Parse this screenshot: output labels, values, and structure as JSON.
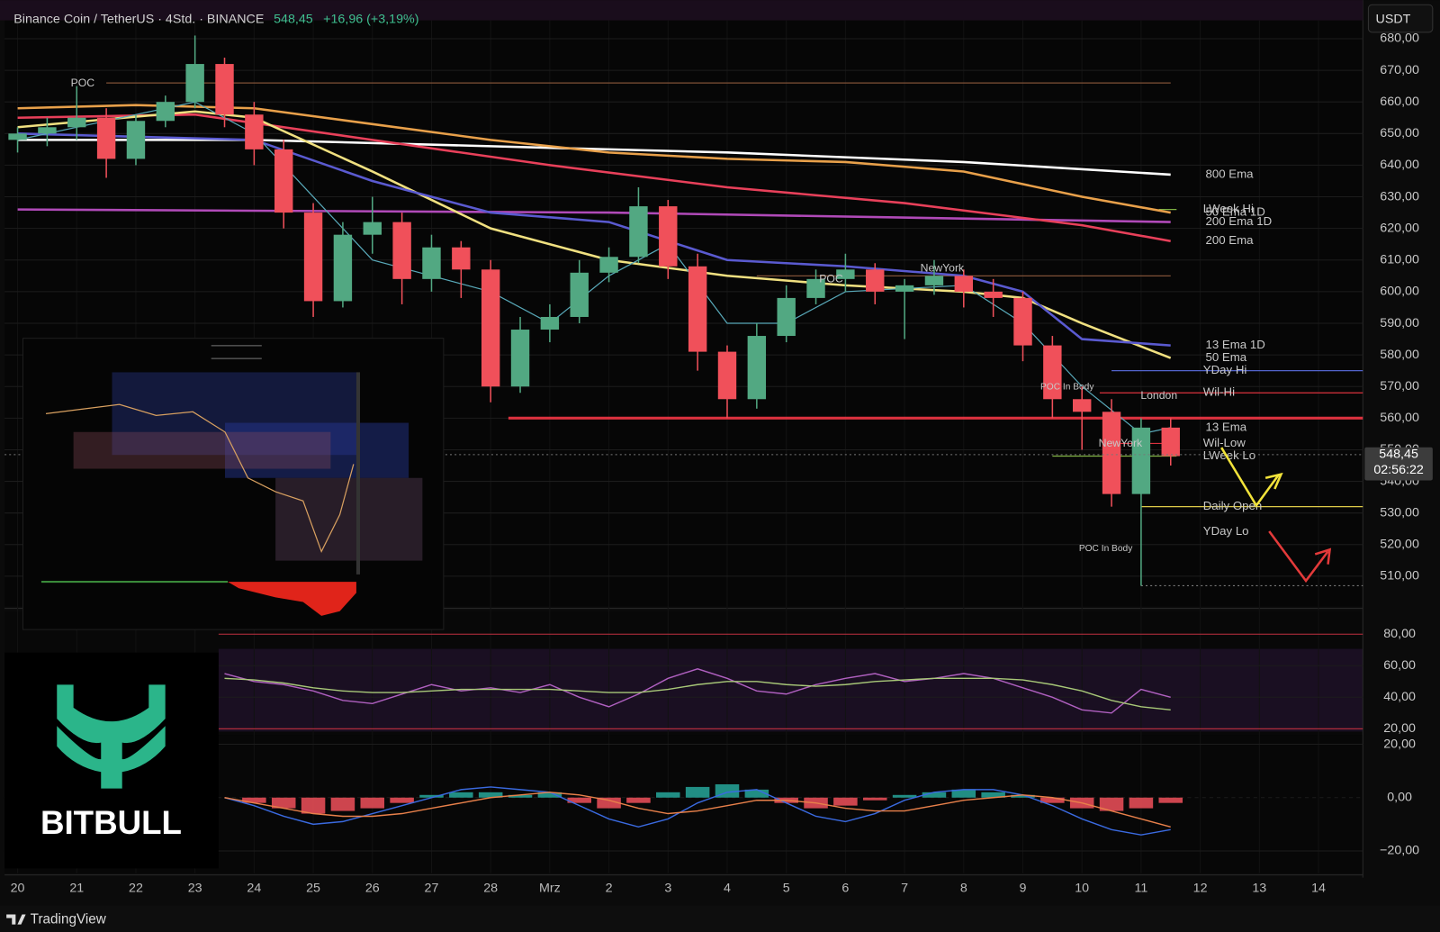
{
  "header": {
    "symbol": "Binance Coin / TetherUS · 4Std. · BINANCE",
    "price": "548,45",
    "change": "+16,96 (+3,19%)",
    "currency": "USDT"
  },
  "countdown": "02:56:22",
  "logo": "BITBULL",
  "footer": "TradingView",
  "annotations": [
    "POC",
    "POC",
    "NewYork",
    "NewYork",
    "London",
    "POC In Body",
    "POC In Body"
  ],
  "chart_data": [
    {
      "type": "candlestick",
      "xlim": [
        -0.22,
        22.75
      ],
      "xticks": [
        {
          "value": 0,
          "label": "20"
        },
        {
          "value": 1,
          "label": "21"
        },
        {
          "value": 2,
          "label": "22"
        },
        {
          "value": 3,
          "label": "23"
        },
        {
          "value": 4,
          "label": "24"
        },
        {
          "value": 5,
          "label": "25"
        },
        {
          "value": 6,
          "label": "26"
        },
        {
          "value": 7,
          "label": "27"
        },
        {
          "value": 8,
          "label": "28"
        },
        {
          "value": 9,
          "label": "Mrz"
        },
        {
          "value": 10,
          "label": "2"
        },
        {
          "value": 11,
          "label": "3"
        },
        {
          "value": 12,
          "label": "4"
        },
        {
          "value": 13,
          "label": "5"
        },
        {
          "value": 14,
          "label": "6"
        },
        {
          "value": 15,
          "label": "7"
        },
        {
          "value": 16,
          "label": "8"
        },
        {
          "value": 17,
          "label": "9"
        },
        {
          "value": 18,
          "label": "10"
        },
        {
          "value": 19,
          "label": "11"
        },
        {
          "value": 20,
          "label": "12"
        },
        {
          "value": 21,
          "label": "13"
        },
        {
          "value": 22,
          "label": "14"
        }
      ],
      "ylim": [
        500.4,
        685.8
      ],
      "yticks": [
        {
          "value": 510,
          "label": "510,00"
        },
        {
          "value": 520,
          "label": "520,00"
        },
        {
          "value": 530,
          "label": "530,00"
        },
        {
          "value": 540,
          "label": "540,00"
        },
        {
          "value": 550,
          "label": "550,00"
        },
        {
          "value": 560,
          "label": "560,00"
        },
        {
          "value": 570,
          "label": "570,00"
        },
        {
          "value": 580,
          "label": "580,00"
        },
        {
          "value": 590,
          "label": "590,00"
        },
        {
          "value": 600,
          "label": "600,00"
        },
        {
          "value": 610,
          "label": "610,00"
        },
        {
          "value": 620,
          "label": "620,00"
        },
        {
          "value": 630,
          "label": "630,00"
        },
        {
          "value": 640,
          "label": "640,00"
        },
        {
          "value": 650,
          "label": "650,00"
        },
        {
          "value": 660,
          "label": "660,00"
        },
        {
          "value": 670,
          "label": "670,00"
        },
        {
          "value": 680,
          "label": "680,00"
        }
      ],
      "up_color": "#52a882",
      "down_color": "#f0505a",
      "x": [
        0,
        0.5,
        1,
        1.5,
        2,
        2.5,
        3,
        3.5,
        4,
        4.5,
        5,
        5.5,
        6,
        6.5,
        7,
        7.5,
        8,
        8.5,
        9,
        9.5,
        10,
        10.5,
        11,
        11.5,
        12,
        12.5,
        13,
        13.5,
        14,
        14.5,
        15,
        15.5,
        16,
        16.5,
        17,
        17.5,
        18,
        18.5,
        19,
        19.5
      ],
      "open": [
        648,
        650,
        652,
        655,
        642,
        654,
        660,
        672,
        656,
        645,
        625,
        597,
        618,
        622,
        604,
        614,
        607,
        570,
        588,
        592,
        606,
        611,
        627,
        608,
        581,
        566,
        586,
        598,
        604,
        607,
        600,
        602,
        605,
        600,
        598,
        583,
        566,
        562,
        536,
        557
      ],
      "high": [
        652,
        655,
        665,
        658,
        656,
        662,
        681,
        674,
        660,
        648,
        628,
        622,
        630,
        625,
        618,
        616,
        610,
        592,
        596,
        610,
        614,
        633,
        629,
        612,
        583,
        590,
        602,
        607,
        612,
        609,
        604,
        610,
        607,
        604,
        600,
        586,
        570,
        566,
        560,
        560
      ],
      "low": [
        644,
        646,
        648,
        636,
        640,
        652,
        658,
        652,
        640,
        620,
        592,
        595,
        612,
        596,
        600,
        598,
        565,
        568,
        584,
        590,
        603,
        609,
        604,
        575,
        560,
        563,
        584,
        596,
        600,
        596,
        585,
        599,
        595,
        592,
        578,
        560,
        550,
        532,
        507,
        545
      ],
      "close": [
        650,
        652,
        655,
        642,
        654,
        660,
        672,
        656,
        645,
        625,
        597,
        618,
        622,
        604,
        614,
        607,
        570,
        588,
        592,
        606,
        611,
        627,
        608,
        581,
        566,
        586,
        598,
        604,
        607,
        600,
        602,
        605,
        600,
        598,
        583,
        566,
        562,
        536,
        557,
        548
      ],
      "last_price": {
        "value": 548.45,
        "label": "548,45"
      },
      "lines": [
        {
          "name": "800 Ema",
          "color": "#ffffff",
          "x": [
            0,
            4,
            8,
            12,
            16,
            19.5
          ],
          "values": [
            648,
            648,
            646,
            644,
            641,
            637
          ]
        },
        {
          "name": "50 Ema 1D",
          "color": "#e8a04a",
          "x": [
            0,
            2,
            4,
            6,
            8,
            10,
            12,
            14,
            16,
            18,
            19.5
          ],
          "values": [
            658,
            659,
            658,
            653,
            648,
            644,
            642,
            641,
            638,
            630,
            625
          ]
        },
        {
          "name": "200 Ema 1D",
          "color": "#b04ab8",
          "x": [
            0,
            10,
            19.5
          ],
          "values": [
            626,
            625,
            622
          ]
        },
        {
          "name": "200 Ema",
          "color": "#e8405a",
          "x": [
            0,
            3,
            6,
            9,
            12,
            15,
            18,
            19.5
          ],
          "values": [
            655,
            656,
            648,
            640,
            633,
            628,
            621,
            616
          ]
        },
        {
          "name": "50 Ema",
          "color": "#f0e080",
          "x": [
            0,
            3,
            4,
            6,
            8,
            10,
            12,
            14,
            16,
            17,
            18,
            19.5
          ],
          "values": [
            652,
            657,
            655,
            638,
            620,
            610,
            605,
            602,
            600,
            598,
            590,
            579
          ]
        },
        {
          "name": "13 Ema 1D",
          "color": "#5a5ad0",
          "x": [
            0,
            4,
            6,
            8,
            10,
            12,
            14,
            16,
            17,
            18,
            19.5
          ],
          "values": [
            650,
            648,
            635,
            625,
            622,
            610,
            608,
            605,
            600,
            585,
            583
          ]
        },
        {
          "name": "13 Ema",
          "color": "#58a8b8",
          "x": [
            0,
            3,
            4,
            5,
            6,
            8,
            9,
            10,
            11,
            12,
            13,
            14,
            16,
            17,
            18,
            19,
            19.5
          ],
          "values": [
            648,
            660,
            650,
            630,
            610,
            600,
            590,
            605,
            615,
            590,
            590,
            600,
            602,
            590,
            570,
            555,
            557
          ]
        }
      ],
      "levels": [
        {
          "value": 666,
          "color": "#8d5a3c"
        },
        {
          "value": 605,
          "color": "#8d5a3c"
        },
        {
          "name": "LWeek Hi",
          "value": 626,
          "color": "#8bc34a"
        },
        {
          "name": "YDay Hi",
          "value": 575,
          "color": "#5b6ee1"
        },
        {
          "name": "Wil-Hi",
          "value": 568,
          "color": "#f23645"
        },
        {
          "value": 560,
          "color": "#f23645"
        },
        {
          "name": "Wil-Low",
          "value": 552,
          "color": "#f23645"
        },
        {
          "name": "LWeek Lo",
          "value": 548,
          "color": "#8bc34a"
        },
        {
          "name": "Daily Open",
          "value": 532,
          "color": "#f5e050"
        },
        {
          "name": "YDay Lo",
          "value": 524,
          "color": "#5b6ee1"
        },
        {
          "value": 507,
          "color": "#888888"
        }
      ]
    },
    {
      "type": "line",
      "ylim": [
        15.9,
        94.6
      ],
      "yticks": [
        {
          "value": 20,
          "label": "20,00"
        },
        {
          "value": 40,
          "label": "40,00"
        },
        {
          "value": 60,
          "label": "60,00"
        },
        {
          "value": 80,
          "label": "80,00"
        }
      ],
      "x": [
        3.5,
        4,
        4.5,
        5,
        5.5,
        6,
        6.5,
        7,
        7.5,
        8,
        8.5,
        9,
        9.5,
        10,
        10.5,
        11,
        11.5,
        12,
        12.5,
        13,
        13.5,
        14,
        14.5,
        15,
        15.5,
        16,
        16.5,
        17,
        17.5,
        18,
        18.5,
        19,
        19.5
      ],
      "series": [
        {
          "color": "#b060c0",
          "values": [
            55,
            50,
            48,
            44,
            38,
            36,
            42,
            48,
            44,
            46,
            43,
            48,
            40,
            34,
            42,
            52,
            58,
            52,
            44,
            42,
            48,
            52,
            55,
            50,
            52,
            55,
            52,
            46,
            40,
            32,
            30,
            45,
            40
          ]
        },
        {
          "color": "#a8c878",
          "values": [
            52,
            51,
            49,
            46,
            44,
            43,
            43,
            44,
            45,
            45,
            45,
            45,
            44,
            43,
            43,
            45,
            48,
            50,
            50,
            48,
            47,
            48,
            50,
            51,
            52,
            52,
            52,
            51,
            48,
            44,
            38,
            34,
            32
          ]
        }
      ]
    },
    {
      "type": "macd",
      "ylim": [
        -28.3,
        23.4
      ],
      "yticks": [
        {
          "value": -20,
          "label": "−20,00"
        },
        {
          "value": 0,
          "label": "0,00"
        },
        {
          "value": 20,
          "label": "20,00"
        }
      ],
      "x": [
        3.5,
        4,
        4.5,
        5,
        5.5,
        6,
        6.5,
        7,
        7.5,
        8,
        8.5,
        9,
        9.5,
        10,
        10.5,
        11,
        11.5,
        12,
        12.5,
        13,
        13.5,
        14,
        14.5,
        15,
        15.5,
        16,
        16.5,
        17,
        17.5,
        18,
        18.5,
        19,
        19.5
      ],
      "histogram": {
        "up_color": "#26a69a",
        "down_color": "#f0505a",
        "values": [
          0,
          -2,
          -4,
          -6,
          -5,
          -4,
          -2,
          1,
          2,
          2,
          1,
          2,
          -2,
          -4,
          -2,
          2,
          4,
          5,
          3,
          -2,
          -4,
          -3,
          -1,
          1,
          2,
          3,
          2,
          1,
          -2,
          -4,
          -5,
          -4,
          -2
        ]
      },
      "series": [
        {
          "color": "#3a6ae0",
          "values": [
            0,
            -3,
            -7,
            -10,
            -9,
            -6,
            -3,
            0,
            3,
            4,
            3,
            2,
            -3,
            -8,
            -11,
            -8,
            -2,
            2,
            3,
            -2,
            -7,
            -9,
            -6,
            -1,
            2,
            3,
            3,
            1,
            -3,
            -8,
            -12,
            -14,
            -12
          ]
        },
        {
          "color": "#e8804a",
          "values": [
            0,
            -2,
            -4,
            -6,
            -7,
            -7,
            -6,
            -4,
            -2,
            0,
            1,
            2,
            1,
            -1,
            -4,
            -6,
            -5,
            -3,
            -1,
            -1,
            -2,
            -4,
            -5,
            -5,
            -3,
            -1,
            0,
            1,
            0,
            -2,
            -5,
            -8,
            -11
          ]
        }
      ]
    }
  ]
}
